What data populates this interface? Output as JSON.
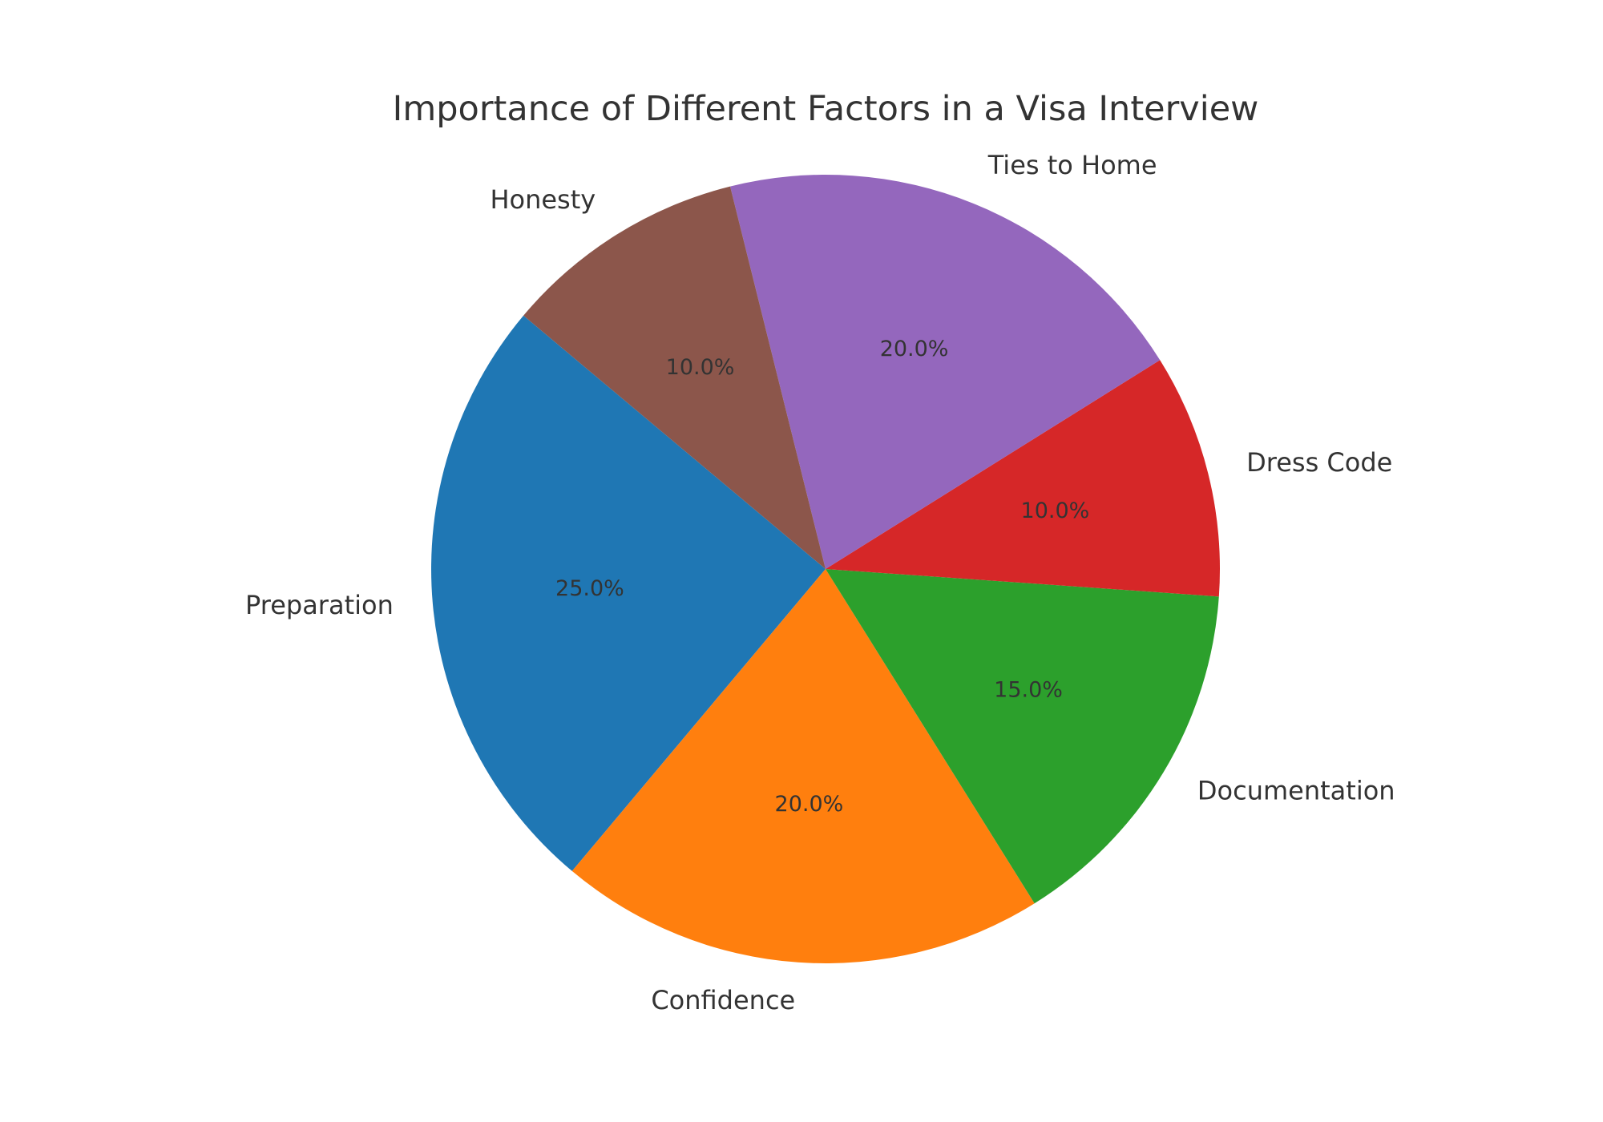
{
  "chart_data": {
    "type": "pie",
    "title": "Importance of Different Factors in a Visa Interview",
    "slices": [
      {
        "label": "Preparation",
        "value": 25.0,
        "pct_label": "25.0%",
        "color": "#1f77b4"
      },
      {
        "label": "Confidence",
        "value": 20.0,
        "pct_label": "20.0%",
        "color": "#ff7f0e"
      },
      {
        "label": "Documentation",
        "value": 15.0,
        "pct_label": "15.0%",
        "color": "#2ca02c"
      },
      {
        "label": "Dress Code",
        "value": 10.0,
        "pct_label": "10.0%",
        "color": "#d62728"
      },
      {
        "label": "Ties to Home",
        "value": 20.0,
        "pct_label": "20.0%",
        "color": "#9467bd"
      },
      {
        "label": "Honesty",
        "value": 10.0,
        "pct_label": "10.0%",
        "color": "#8c564b"
      }
    ],
    "start_angle_deg": 140,
    "direction": "counterclockwise",
    "legend": "none"
  }
}
